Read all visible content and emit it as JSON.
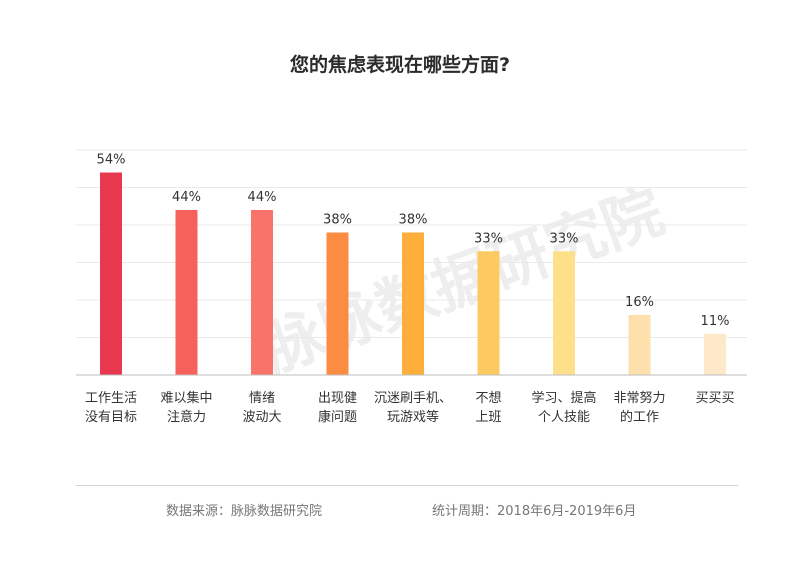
{
  "footer": {
    "source": "数据来源：脉脉数据研究院",
    "period": "统计周期：2018年6月-2019年6月"
  },
  "watermark": "脉脉数据研究院",
  "chart_data": {
    "type": "bar",
    "title": "您的焦虑表现在哪些方面?",
    "xlabel": "",
    "ylabel": "",
    "ylim": [
      0,
      60
    ],
    "grid": true,
    "legend": "none",
    "categories": [
      [
        "工作生活",
        "没有目标"
      ],
      [
        "难以集中",
        "注意力"
      ],
      [
        "情绪",
        "波动大"
      ],
      [
        "出现健",
        "康问题"
      ],
      [
        "沉迷刷手机、",
        "玩游戏等"
      ],
      [
        "不想",
        "上班"
      ],
      [
        "学习、提高",
        "个人技能"
      ],
      [
        "非常努力",
        "的工作"
      ],
      [
        "买买买"
      ]
    ],
    "values": [
      54,
      44,
      44,
      38,
      38,
      33,
      33,
      16,
      11
    ],
    "value_labels": [
      "54%",
      "44%",
      "44%",
      "38%",
      "38%",
      "33%",
      "33%",
      "16%",
      "11%"
    ],
    "colors": [
      "#e8384f",
      "#f7615c",
      "#f9736a",
      "#fb8c42",
      "#fdae3b",
      "#fdca62",
      "#fee08a",
      "#fde0ac",
      "#fde9c9"
    ],
    "grid_color": "#e9e9e9",
    "axis_color": "#bdbdbd"
  }
}
